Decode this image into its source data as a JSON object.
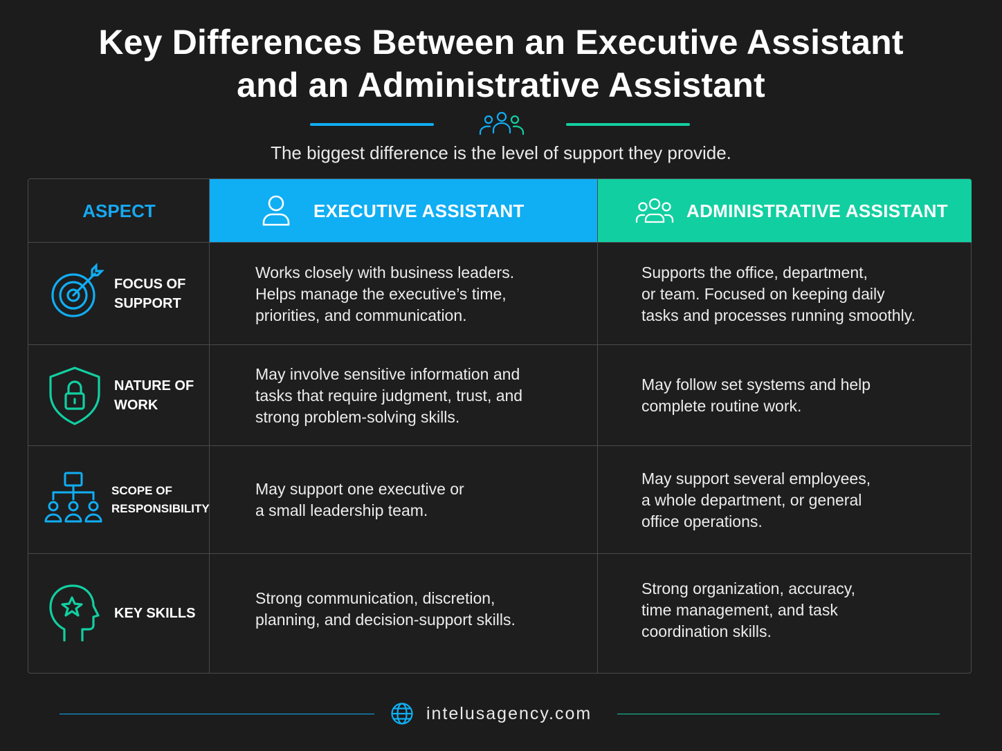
{
  "title": {
    "line1": "Key Differences Between an Executive Assistant",
    "line2": "and an Administrative Assistant"
  },
  "subtitle": "The biggest difference is the level of support they provide.",
  "colors": {
    "blue": "#10aef3",
    "green": "#12cfa1",
    "background": "#1c1c1d"
  },
  "table": {
    "headers": {
      "aspect": "ASPECT",
      "executive": "EXECUTIVE ASSISTANT",
      "administrative": "ADMINISTRATIVE ASSISTANT",
      "executive_icon": "person-icon",
      "administrative_icon": "group-icon"
    },
    "rows": [
      {
        "aspect": "FOCUS OF\nSUPPORT",
        "icon": "target-icon",
        "executive": "Works closely with business leaders.\nHelps manage the executive’s time,\npriorities, and communication.",
        "administrative": "Supports the office, department,\nor team. Focused on keeping daily\ntasks and processes running smoothly."
      },
      {
        "aspect": "NATURE OF\nWORK",
        "icon": "shield-lock-icon",
        "executive": "May involve sensitive information and\ntasks that require judgment, trust, and\nstrong problem-solving skills.",
        "administrative": "May follow set systems and help\ncomplete routine work."
      },
      {
        "aspect": "SCOPE OF\nRESPONSIBILITY",
        "icon": "org-chart-icon",
        "executive": "May support one executive or\na small leadership team.",
        "administrative": "May support several employees,\na whole department, or general\noffice operations."
      },
      {
        "aspect": "KEY SKILLS",
        "icon": "head-star-icon",
        "executive": "Strong communication, discretion,\nplanning, and decision-support skills.",
        "administrative": "Strong organization, accuracy,\ntime management, and task\ncoordination skills."
      }
    ]
  },
  "footer": {
    "website": "intelusagency.com",
    "icon": "globe-icon"
  }
}
